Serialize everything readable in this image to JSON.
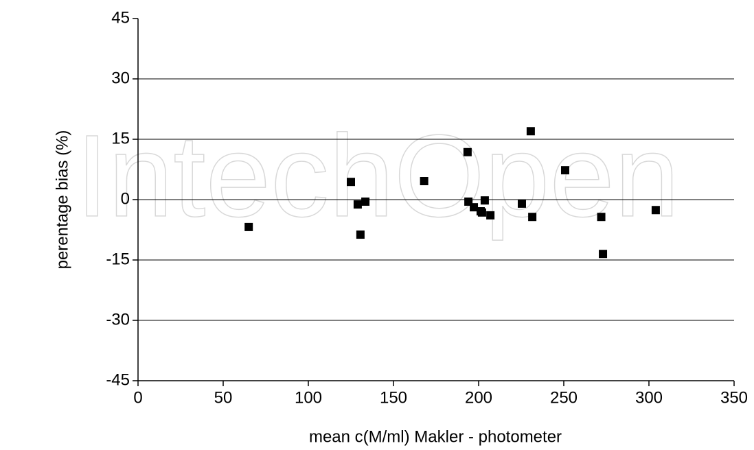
{
  "chart_data": {
    "type": "scatter",
    "watermark": "IntechOpen",
    "x_label": "mean c(M/ml) Makler - photometer",
    "y_label": "perentage bias (%)",
    "color": "#000000",
    "grid": true,
    "xlim": [
      0,
      350
    ],
    "xticks": [
      0,
      50,
      100,
      150,
      200,
      250,
      300,
      350
    ],
    "ylim": [
      -45,
      45
    ],
    "yticks": [
      -45,
      -30,
      -15,
      0,
      15,
      30,
      45
    ],
    "x": [
      65,
      125,
      129,
      130.6,
      133.5,
      168,
      193.5,
      194,
      197.2,
      201.2,
      202,
      203.6,
      206.9,
      225.4,
      230.6,
      231.5,
      250.8,
      272,
      273,
      304
    ],
    "y": [
      -6.8,
      4.4,
      -1.2,
      -8.7,
      -0.5,
      4.6,
      11.8,
      -0.5,
      -1.9,
      -2.9,
      -3.2,
      -0.2,
      -3.9,
      -1.0,
      17.0,
      -4.3,
      7.3,
      -4.3,
      -13.5,
      -2.6
    ]
  }
}
